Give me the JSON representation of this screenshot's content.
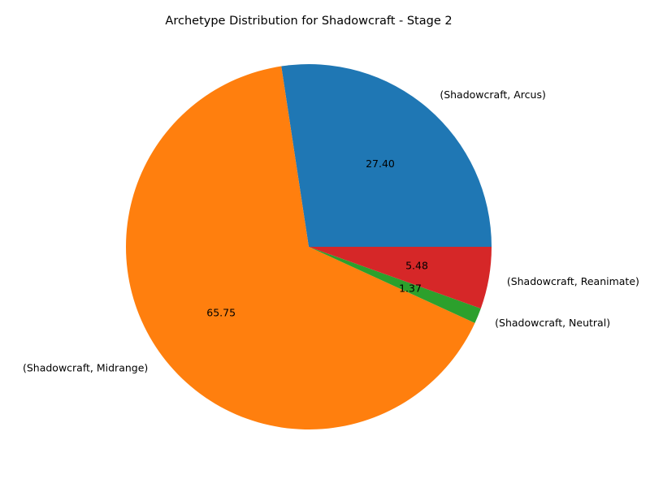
{
  "chart_data": {
    "type": "pie",
    "title": "Archetype Distribution for Shadowcraft - Stage 2",
    "start_angle_deg": 0,
    "direction": "counterclockwise",
    "legend": "none",
    "grid": false,
    "slices": [
      {
        "label": "(Shadowcraft, Arcus)",
        "value": 27.4,
        "pct_label": "27.40",
        "color": "#1f77b4"
      },
      {
        "label": "(Shadowcraft, Midrange)",
        "value": 65.75,
        "pct_label": "65.75",
        "color": "#ff7f0e"
      },
      {
        "label": "(Shadowcraft, Neutral)",
        "value": 1.37,
        "pct_label": "1.37",
        "color": "#2ca02c"
      },
      {
        "label": "(Shadowcraft, Reanimate)",
        "value": 5.48,
        "pct_label": "5.48",
        "color": "#d62728"
      }
    ]
  }
}
